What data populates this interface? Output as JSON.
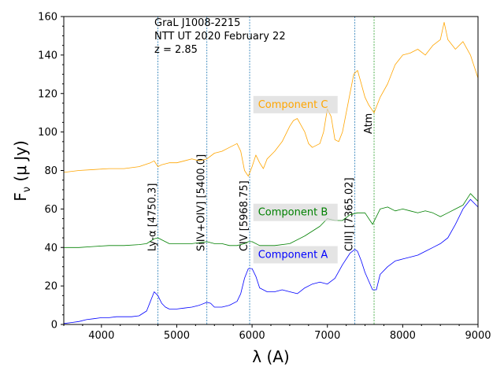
{
  "chart_data": {
    "type": "line",
    "title": "",
    "xlabel": "λ (A)",
    "ylabel_main": "F",
    "ylabel_sub": "ν",
    "ylabel_rest": " (μ Jy)",
    "xlim": [
      3500,
      9000
    ],
    "ylim": [
      0,
      160
    ],
    "xticks": [
      4000,
      5000,
      6000,
      7000,
      8000,
      9000
    ],
    "yticks": [
      0,
      20,
      40,
      60,
      80,
      100,
      120,
      140,
      160
    ],
    "grid": false,
    "info_lines": [
      "GraL J1008-2215",
      "NTT UT 2020 February 22",
      "z = 2.85"
    ],
    "lines": [
      {
        "x": 4750,
        "label": "Ly-α [4750.3]",
        "label_y": 38,
        "color": "#1f77b4"
      },
      {
        "x": 5400,
        "label": "SiIV+OIV] [5400.0]",
        "label_y": 38,
        "color": "#1f77b4"
      },
      {
        "x": 5968,
        "label": "CIV [5968.75]",
        "label_y": 38,
        "color": "#1f77b4"
      },
      {
        "x": 7365,
        "label": "CIII] [7365.02]",
        "label_y": 38,
        "color": "#1f77b4"
      },
      {
        "x": 7620,
        "label": "Atm",
        "label_y": 99,
        "color": "#2ca02c"
      }
    ],
    "series": [
      {
        "name": "Component A",
        "color": "#0000ff",
        "label_x": 6080,
        "label_y": 35,
        "points": [
          [
            3500,
            0.5
          ],
          [
            3600,
            1
          ],
          [
            3700,
            1.5
          ],
          [
            3800,
            2.5
          ],
          [
            3900,
            3
          ],
          [
            4000,
            3.5
          ],
          [
            4100,
            3.5
          ],
          [
            4200,
            4
          ],
          [
            4300,
            4
          ],
          [
            4400,
            4
          ],
          [
            4500,
            4.5
          ],
          [
            4600,
            7
          ],
          [
            4650,
            12
          ],
          [
            4700,
            17
          ],
          [
            4750,
            15
          ],
          [
            4800,
            11
          ],
          [
            4850,
            9
          ],
          [
            4900,
            8
          ],
          [
            5000,
            8
          ],
          [
            5100,
            8.5
          ],
          [
            5200,
            9
          ],
          [
            5300,
            10
          ],
          [
            5400,
            11.5
          ],
          [
            5450,
            11
          ],
          [
            5500,
            9
          ],
          [
            5600,
            9
          ],
          [
            5700,
            10
          ],
          [
            5800,
            12
          ],
          [
            5850,
            16
          ],
          [
            5900,
            24
          ],
          [
            5950,
            29
          ],
          [
            6000,
            29
          ],
          [
            6050,
            25
          ],
          [
            6100,
            19
          ],
          [
            6200,
            17
          ],
          [
            6300,
            17
          ],
          [
            6400,
            18
          ],
          [
            6500,
            17
          ],
          [
            6600,
            16
          ],
          [
            6700,
            19
          ],
          [
            6800,
            21
          ],
          [
            6900,
            22
          ],
          [
            7000,
            21
          ],
          [
            7100,
            24
          ],
          [
            7200,
            31
          ],
          [
            7300,
            37
          ],
          [
            7365,
            39
          ],
          [
            7400,
            38
          ],
          [
            7450,
            33
          ],
          [
            7500,
            27
          ],
          [
            7600,
            18
          ],
          [
            7650,
            18
          ],
          [
            7700,
            26
          ],
          [
            7800,
            30
          ],
          [
            7900,
            33
          ],
          [
            8000,
            34
          ],
          [
            8100,
            35
          ],
          [
            8200,
            36
          ],
          [
            8300,
            38
          ],
          [
            8400,
            40
          ],
          [
            8500,
            42
          ],
          [
            8600,
            45
          ],
          [
            8700,
            52
          ],
          [
            8800,
            60
          ],
          [
            8900,
            65
          ],
          [
            9000,
            61
          ]
        ]
      },
      {
        "name": "Component B",
        "color": "#008000",
        "label_x": 6080,
        "label_y": 57,
        "points": [
          [
            3500,
            40
          ],
          [
            3700,
            40
          ],
          [
            3900,
            40.5
          ],
          [
            4100,
            41
          ],
          [
            4300,
            41
          ],
          [
            4500,
            41.5
          ],
          [
            4600,
            42
          ],
          [
            4700,
            44.5
          ],
          [
            4750,
            45
          ],
          [
            4800,
            44
          ],
          [
            4900,
            42
          ],
          [
            5000,
            42
          ],
          [
            5200,
            42
          ],
          [
            5400,
            43
          ],
          [
            5500,
            42
          ],
          [
            5600,
            42
          ],
          [
            5700,
            41
          ],
          [
            5800,
            41
          ],
          [
            5900,
            42
          ],
          [
            5950,
            43
          ],
          [
            6000,
            43
          ],
          [
            6100,
            41
          ],
          [
            6300,
            41
          ],
          [
            6500,
            42
          ],
          [
            6700,
            46
          ],
          [
            6900,
            51
          ],
          [
            7000,
            55
          ],
          [
            7100,
            54
          ],
          [
            7200,
            54
          ],
          [
            7300,
            57
          ],
          [
            7400,
            58
          ],
          [
            7500,
            58
          ],
          [
            7600,
            52
          ],
          [
            7700,
            60
          ],
          [
            7800,
            61
          ],
          [
            7900,
            59
          ],
          [
            8000,
            60
          ],
          [
            8100,
            59
          ],
          [
            8200,
            58
          ],
          [
            8300,
            59
          ],
          [
            8400,
            58
          ],
          [
            8500,
            56
          ],
          [
            8600,
            58
          ],
          [
            8700,
            60
          ],
          [
            8800,
            62
          ],
          [
            8900,
            68
          ],
          [
            9000,
            64
          ]
        ]
      },
      {
        "name": "Component C",
        "color": "#ffa500",
        "label_x": 6080,
        "label_y": 113,
        "points": [
          [
            3500,
            79
          ],
          [
            3700,
            80
          ],
          [
            3900,
            80.5
          ],
          [
            4100,
            81
          ],
          [
            4300,
            81
          ],
          [
            4500,
            82
          ],
          [
            4650,
            84
          ],
          [
            4700,
            85
          ],
          [
            4750,
            82
          ],
          [
            4800,
            83
          ],
          [
            4900,
            84
          ],
          [
            5000,
            84
          ],
          [
            5100,
            85
          ],
          [
            5200,
            86
          ],
          [
            5300,
            85
          ],
          [
            5400,
            86
          ],
          [
            5500,
            89
          ],
          [
            5600,
            90
          ],
          [
            5700,
            92
          ],
          [
            5800,
            94
          ],
          [
            5850,
            90
          ],
          [
            5900,
            80
          ],
          [
            5950,
            77
          ],
          [
            6000,
            82
          ],
          [
            6050,
            88
          ],
          [
            6100,
            84
          ],
          [
            6150,
            81
          ],
          [
            6200,
            86
          ],
          [
            6300,
            90
          ],
          [
            6400,
            95
          ],
          [
            6500,
            103
          ],
          [
            6550,
            106
          ],
          [
            6600,
            107
          ],
          [
            6700,
            100
          ],
          [
            6750,
            94
          ],
          [
            6800,
            92
          ],
          [
            6900,
            94
          ],
          [
            6950,
            100
          ],
          [
            7000,
            112
          ],
          [
            7050,
            108
          ],
          [
            7100,
            96
          ],
          [
            7150,
            95
          ],
          [
            7200,
            100
          ],
          [
            7300,
            120
          ],
          [
            7350,
            130
          ],
          [
            7400,
            132
          ],
          [
            7450,
            125
          ],
          [
            7500,
            118
          ],
          [
            7550,
            114
          ],
          [
            7620,
            110
          ],
          [
            7700,
            118
          ],
          [
            7800,
            125
          ],
          [
            7900,
            135
          ],
          [
            8000,
            140
          ],
          [
            8100,
            141
          ],
          [
            8200,
            143
          ],
          [
            8300,
            140
          ],
          [
            8400,
            145
          ],
          [
            8500,
            148
          ],
          [
            8550,
            157
          ],
          [
            8600,
            148
          ],
          [
            8700,
            143
          ],
          [
            8800,
            147
          ],
          [
            8900,
            140
          ],
          [
            9000,
            128
          ]
        ]
      }
    ]
  }
}
